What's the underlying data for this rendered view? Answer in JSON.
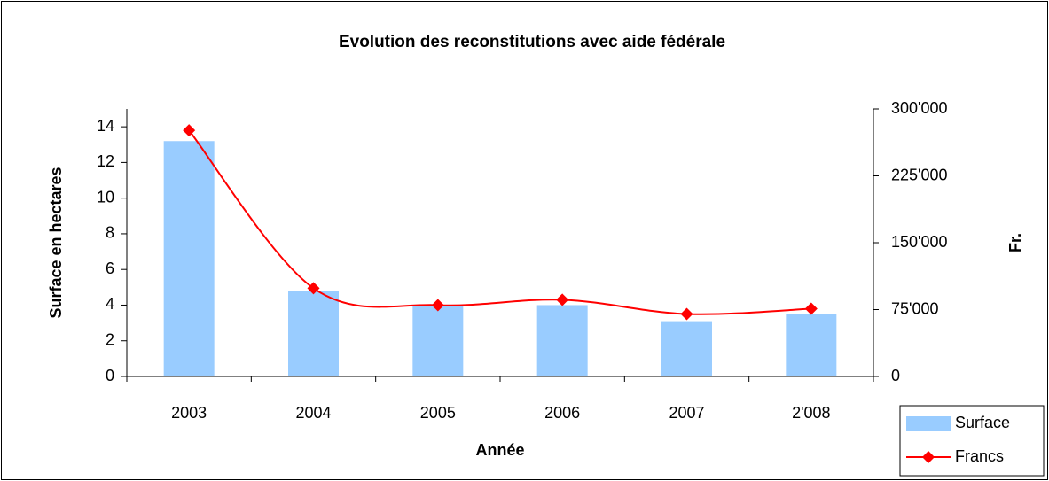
{
  "chart_data": {
    "type": "bar_line",
    "title": "Evolution des reconstitutions avec aide fédérale",
    "x_label": "Année",
    "y_label": "Surface en hectares",
    "y2_label": "Fr.",
    "categories": [
      "2003",
      "2004",
      "2005",
      "2006",
      "2007",
      "2'008"
    ],
    "series": [
      {
        "name": "Surface",
        "type": "bar",
        "color": "#99ccff",
        "values": [
          13.2,
          4.8,
          4.0,
          4.0,
          3.1,
          3.5
        ]
      },
      {
        "name": "Francs",
        "type": "line",
        "axis": "y2",
        "color": "#ff0000",
        "values": [
          276000,
          99000,
          80000,
          86000,
          70000,
          76000
        ]
      }
    ],
    "ylim": [
      0,
      15
    ],
    "yticks": [
      0,
      2,
      4,
      6,
      8,
      10,
      12,
      14
    ],
    "y2lim": [
      0,
      300000
    ],
    "y2ticks": [
      0,
      {
        "value": 75000,
        "label": "75'000"
      },
      {
        "value": 150000,
        "label": "150'000"
      },
      {
        "value": 225000,
        "label": "225'000"
      },
      {
        "value": 300000,
        "label": "300'000"
      }
    ],
    "legend": "bottom-right",
    "grid": false
  }
}
